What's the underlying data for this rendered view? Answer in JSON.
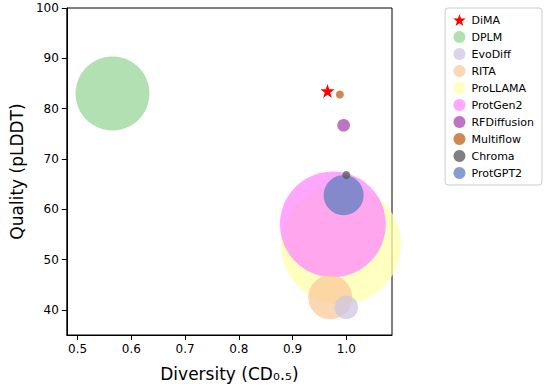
{
  "chart_data": {
    "type": "scatter",
    "x_label": "Diversity (CD₀.₅)",
    "y_label": "Quality (pLDDT)",
    "xlim": [
      0.48,
      1.085
    ],
    "xticks": [
      0.5,
      0.6,
      0.7,
      0.8,
      0.9,
      {
        "value": 1,
        "label": "1.0"
      }
    ],
    "ylim": [
      35,
      100
    ],
    "yticks": [
      40,
      50,
      60,
      70,
      80,
      90,
      100
    ],
    "grid": false,
    "legend": "upper right",
    "series": [
      {
        "name": "DiMA",
        "color": "#ff0000",
        "marker": "star",
        "x": [
          0.965
        ],
        "values": [
          83.5
        ],
        "size": [
          5
        ]
      },
      {
        "name": "DPLM",
        "color": "#98d69a",
        "marker": "circle",
        "x": [
          0.565
        ],
        "values": [
          83
        ],
        "size": [
          137
        ]
      },
      {
        "name": "EvoDiff",
        "color": "#cfc6e3",
        "marker": "circle",
        "x": [
          1.0
        ],
        "values": [
          40.5
        ],
        "size": [
          14
        ]
      },
      {
        "name": "RITA",
        "color": "#f9c99a",
        "marker": "circle",
        "x": [
          0.97
        ],
        "values": [
          42.5
        ],
        "size": [
          48
        ]
      },
      {
        "name": "ProLLAMA",
        "color": "#ffffaa",
        "marker": "circle",
        "x": [
          0.99
        ],
        "values": [
          53
        ],
        "size": [
          360
        ]
      },
      {
        "name": "ProtGen2",
        "color": "#ff88ff",
        "marker": "circle",
        "x": [
          0.975
        ],
        "values": [
          57
        ],
        "size": [
          280
        ]
      },
      {
        "name": "RFDiffusion",
        "color": "#a846b0",
        "marker": "circle",
        "x": [
          0.995
        ],
        "values": [
          76.7
        ],
        "size": [
          4
        ]
      },
      {
        "name": "Multiflow",
        "color": "#c0601a",
        "marker": "circle",
        "x": [
          0.988
        ],
        "values": [
          82.8
        ],
        "size": [
          1.6
        ]
      },
      {
        "name": "Chroma",
        "color": "#555555",
        "marker": "circle",
        "x": [
          1.0
        ],
        "values": [
          66.8
        ],
        "size": [
          1.6
        ]
      },
      {
        "name": "ProtGPT2",
        "color": "#5b7fbf",
        "marker": "circle",
        "x": [
          0.995
        ],
        "values": [
          62.8
        ],
        "size": [
          40
        ]
      }
    ]
  }
}
